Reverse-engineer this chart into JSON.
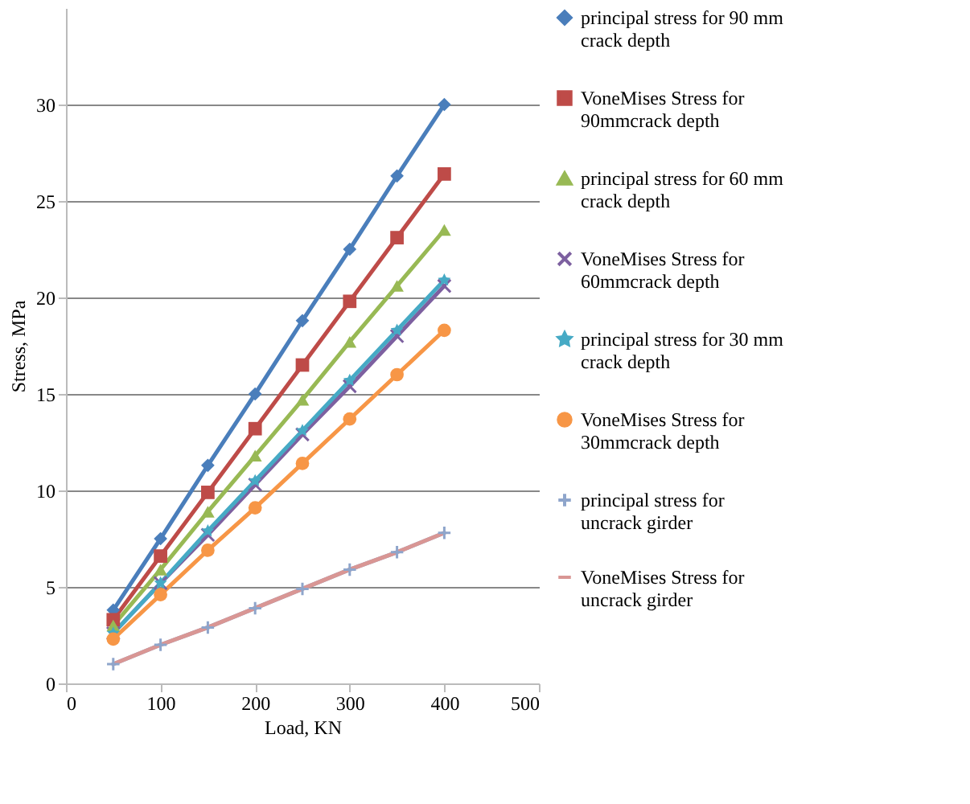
{
  "chart_data": {
    "type": "line",
    "xlabel": "Load, KN",
    "ylabel": "Stress, MPa",
    "x": [
      50,
      100,
      150,
      200,
      250,
      300,
      350,
      400
    ],
    "xlim": [
      0,
      500
    ],
    "xticks": [
      0,
      100,
      200,
      300,
      400,
      500
    ],
    "ylim": [
      0,
      35
    ],
    "yticks": [
      0,
      5,
      10,
      15,
      20,
      25,
      30
    ],
    "grid": "y",
    "legend": "right",
    "series": [
      {
        "name": "principal stress for 90 mm crack depth",
        "color": "#4a7ebb",
        "marker": "diamond",
        "values": [
          3.8,
          7.5,
          11.3,
          15,
          18.8,
          22.5,
          26.3,
          30
        ]
      },
      {
        "name": "VoneMises Stress for 90mmcrack depth",
        "color": "#be4b48",
        "marker": "square",
        "values": [
          3.3,
          6.6,
          9.9,
          13.2,
          16.5,
          19.8,
          23.1,
          26.4
        ]
      },
      {
        "name": "principal stress for 60 mm crack depth",
        "color": "#98b954",
        "marker": "triangle",
        "values": [
          3,
          5.9,
          8.9,
          11.8,
          14.7,
          17.7,
          20.6,
          23.5
        ]
      },
      {
        "name": "VoneMises Stress for 60mmcrack depth",
        "color": "#7d60a0",
        "marker": "cross",
        "values": [
          2.6,
          5.2,
          7.7,
          10.3,
          12.9,
          15.4,
          18,
          20.6
        ]
      },
      {
        "name": "principal stress for 30 mm crack depth",
        "color": "#46aac5",
        "marker": "star",
        "values": [
          2.6,
          5.2,
          7.9,
          10.5,
          13.1,
          15.7,
          18.3,
          20.9
        ]
      },
      {
        "name": "VoneMises Stress for 30mmcrack depth",
        "color": "#f79646",
        "marker": "circle",
        "values": [
          2.3,
          4.6,
          6.9,
          9.1,
          11.4,
          13.7,
          16,
          18.3
        ]
      },
      {
        "name": "principal stress for uncrack girder",
        "color": "#8ea5cb",
        "marker": "plus",
        "values": [
          1,
          2,
          2.9,
          3.9,
          4.9,
          5.9,
          6.8,
          7.8
        ]
      },
      {
        "name": "VoneMises Stress for uncrack girder",
        "color": "#d99694",
        "marker": "none",
        "values": [
          1,
          2,
          2.9,
          3.9,
          4.9,
          5.9,
          6.8,
          7.8
        ]
      }
    ]
  }
}
